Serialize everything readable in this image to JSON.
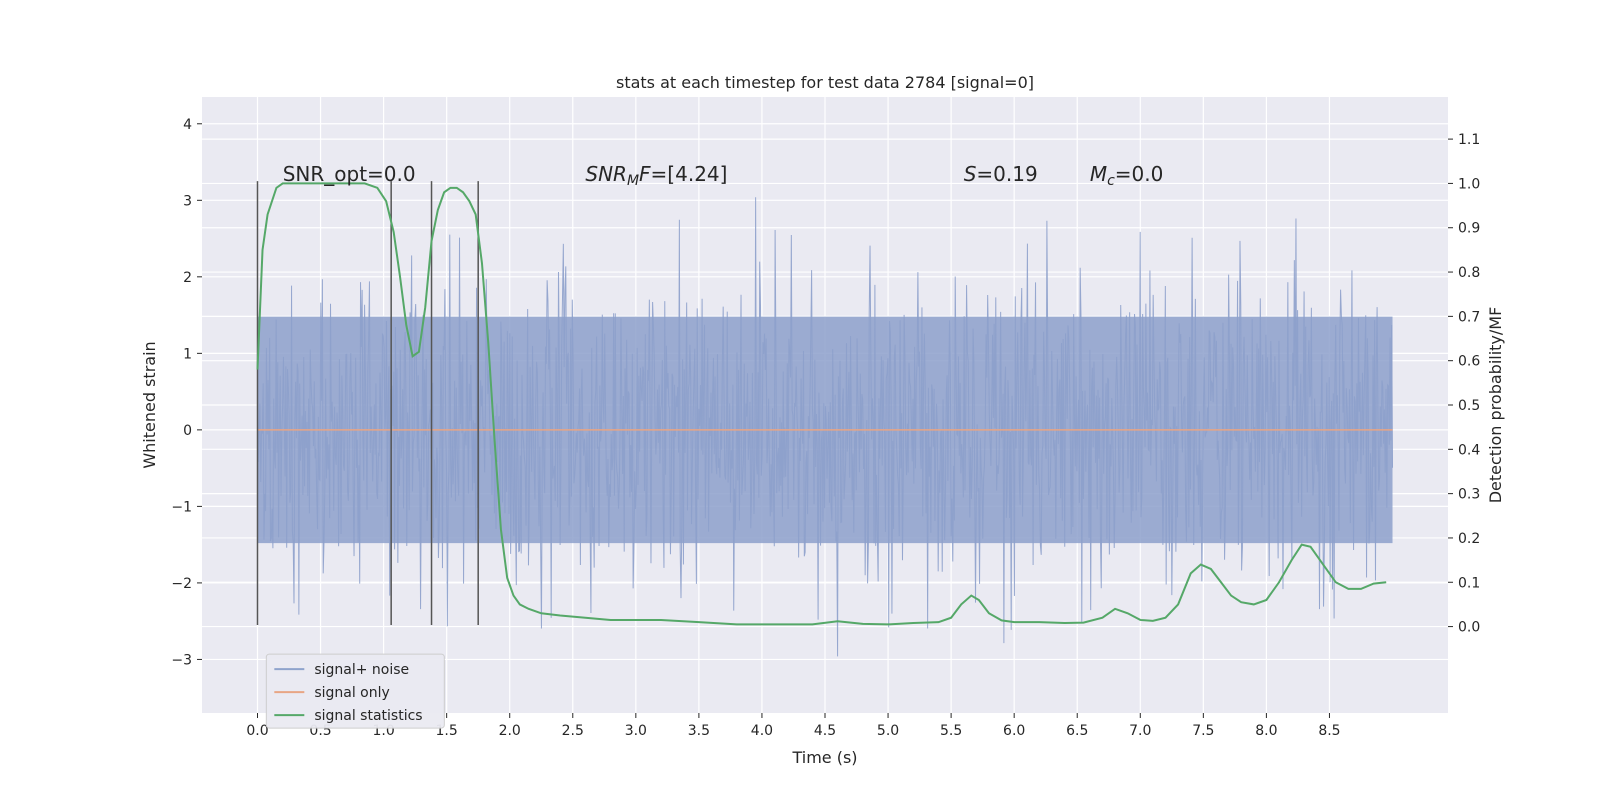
{
  "chart_data": {
    "type": "line",
    "title": "stats at each timestep for test data 2784 [signal=0]",
    "xlabel": "Time (s)",
    "ylabel_left": "Whitened strain",
    "ylabel_right": "Detection probability/MF",
    "xlim": [
      -0.44,
      9.44
    ],
    "ylim_left": [
      -3.7,
      4.35
    ],
    "ylim_right": [
      -0.195,
      1.195
    ],
    "x_ticks": [
      0.0,
      0.5,
      1.0,
      1.5,
      2.0,
      2.5,
      3.0,
      3.5,
      4.0,
      4.5,
      5.0,
      5.5,
      6.0,
      6.5,
      7.0,
      7.5,
      8.0,
      8.5
    ],
    "x_tick_labels": [
      "0.0",
      "0.5",
      "1.0",
      "1.5",
      "2.0",
      "2.5",
      "3.0",
      "3.5",
      "4.0",
      "4.5",
      "5.0",
      "5.5",
      "6.0",
      "6.5",
      "7.0",
      "7.5",
      "8.0",
      "8.5"
    ],
    "y_left_ticks": [
      -3,
      -2,
      -1,
      0,
      1,
      2,
      3,
      4
    ],
    "y_left_tick_labels": [
      "−3",
      "−2",
      "−1",
      "0",
      "1",
      "2",
      "3",
      "4"
    ],
    "y_right_ticks": [
      0.0,
      0.1,
      0.2,
      0.3,
      0.4,
      0.5,
      0.6,
      0.7,
      0.8,
      0.9,
      1.0,
      1.1
    ],
    "y_right_tick_labels": [
      "0.0",
      "0.1",
      "0.2",
      "0.3",
      "0.4",
      "0.5",
      "0.6",
      "0.7",
      "0.8",
      "0.9",
      "1.0",
      "1.1"
    ],
    "noise": {
      "x_start": 0.0,
      "x_end": 9.0,
      "samples": 1400,
      "sigma": 0.95,
      "color": "#8da0cb"
    },
    "series": [
      {
        "name": "signal+ noise",
        "axis": "left",
        "color": "#8fa3cc"
      },
      {
        "name": "signal only",
        "axis": "left",
        "color": "#e8a584",
        "x": [
          0.0,
          9.0
        ],
        "y": [
          0.0,
          0.0
        ]
      },
      {
        "name": "signal statistics",
        "axis": "right",
        "color": "#55a868",
        "x": [
          0.0,
          0.04,
          0.08,
          0.15,
          0.2,
          0.3,
          0.5,
          0.7,
          0.85,
          0.95,
          1.02,
          1.08,
          1.13,
          1.18,
          1.23,
          1.28,
          1.33,
          1.38,
          1.43,
          1.48,
          1.53,
          1.58,
          1.63,
          1.68,
          1.73,
          1.78,
          1.83,
          1.88,
          1.93,
          1.98,
          2.03,
          2.08,
          2.15,
          2.25,
          2.4,
          2.6,
          2.8,
          3.0,
          3.2,
          3.5,
          3.8,
          4.1,
          4.4,
          4.6,
          4.8,
          5.0,
          5.2,
          5.4,
          5.5,
          5.58,
          5.66,
          5.72,
          5.8,
          5.9,
          6.0,
          6.2,
          6.4,
          6.55,
          6.7,
          6.8,
          6.9,
          7.0,
          7.1,
          7.2,
          7.3,
          7.4,
          7.48,
          7.56,
          7.64,
          7.72,
          7.8,
          7.9,
          8.0,
          8.1,
          8.2,
          8.28,
          8.35,
          8.45,
          8.55,
          8.65,
          8.75,
          8.85,
          8.95
        ],
        "y": [
          0.58,
          0.85,
          0.93,
          0.99,
          1.0,
          1.0,
          1.0,
          1.0,
          1.0,
          0.99,
          0.96,
          0.89,
          0.79,
          0.68,
          0.61,
          0.62,
          0.72,
          0.87,
          0.94,
          0.98,
          0.99,
          0.99,
          0.98,
          0.96,
          0.93,
          0.82,
          0.64,
          0.42,
          0.22,
          0.11,
          0.07,
          0.05,
          0.04,
          0.03,
          0.025,
          0.02,
          0.015,
          0.015,
          0.015,
          0.01,
          0.005,
          0.005,
          0.005,
          0.012,
          0.006,
          0.005,
          0.008,
          0.01,
          0.02,
          0.05,
          0.07,
          0.06,
          0.03,
          0.014,
          0.01,
          0.01,
          0.008,
          0.009,
          0.02,
          0.04,
          0.03,
          0.015,
          0.013,
          0.02,
          0.05,
          0.12,
          0.14,
          0.13,
          0.1,
          0.07,
          0.055,
          0.05,
          0.06,
          0.1,
          0.15,
          0.185,
          0.18,
          0.14,
          0.1,
          0.085,
          0.085,
          0.097,
          0.1
        ]
      }
    ],
    "vertical_markers": [
      {
        "x": 0.0,
        "y_top": 3.25,
        "y_bottom": -2.55
      },
      {
        "x": 1.06,
        "y_top": 3.25,
        "y_bottom": -2.55
      },
      {
        "x": 1.38,
        "y_top": 3.25,
        "y_bottom": -2.55
      },
      {
        "x": 1.75,
        "y_top": 3.25,
        "y_bottom": -2.55
      }
    ],
    "annotations": [
      {
        "id": "snr-opt",
        "x": 0.2,
        "y": 3.25,
        "parts": [
          {
            "t": "SNR_opt=0.0",
            "style": "normal"
          }
        ]
      },
      {
        "id": "snr-mf",
        "x": 2.6,
        "y": 3.25,
        "parts": [
          {
            "t": "SNR",
            "style": "italic"
          },
          {
            "t": "M",
            "style": "italic-sub"
          },
          {
            "t": "F",
            "style": "italic"
          },
          {
            "t": "=[4.24]",
            "style": "normal"
          }
        ]
      },
      {
        "id": "s-value",
        "x": 5.6,
        "y": 3.25,
        "parts": [
          {
            "t": "S",
            "style": "italic"
          },
          {
            "t": "=0.19",
            "style": "normal"
          }
        ]
      },
      {
        "id": "mc-value",
        "x": 6.6,
        "y": 3.25,
        "parts": [
          {
            "t": "M",
            "style": "italic"
          },
          {
            "t": "c",
            "style": "italic-sub"
          },
          {
            "t": "=0.0",
            "style": "normal"
          }
        ]
      }
    ],
    "legend": {
      "placement": "lower-left",
      "entries": [
        "signal+ noise",
        "signal only",
        "signal statistics"
      ]
    },
    "grid": true
  }
}
